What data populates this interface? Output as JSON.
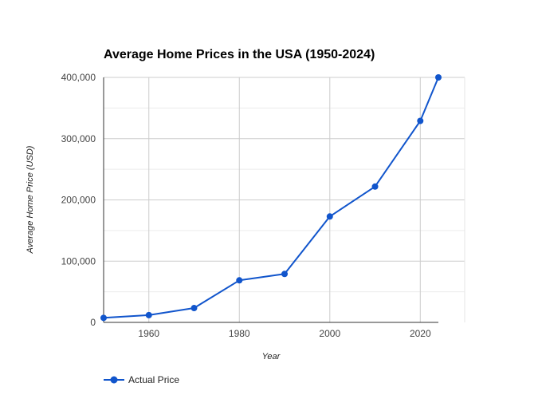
{
  "chart_data": {
    "type": "line",
    "title": "Average Home Prices in the USA (1950-2024)",
    "xlabel": "Year",
    "ylabel": "Average Home Price (USD)",
    "xlim": [
      1950,
      2024
    ],
    "ylim": [
      0,
      400000
    ],
    "x_ticks": [
      1960,
      1980,
      2000,
      2020
    ],
    "x_tick_labels": [
      "1960",
      "1980",
      "2000",
      "2020"
    ],
    "y_ticks": [
      0,
      100000,
      200000,
      300000,
      400000
    ],
    "y_tick_labels": [
      "0",
      "100,000",
      "200,000",
      "300,000",
      "400,000"
    ],
    "grid": true,
    "legend_position": "bottom",
    "series": [
      {
        "name": "Actual Price",
        "color": "#1155cc",
        "x": [
          1950,
          1960,
          1970,
          1980,
          1990,
          2000,
          2010,
          2020,
          2024
        ],
        "y": [
          7400,
          11900,
          23400,
          68700,
          79100,
          172900,
          221800,
          329000,
          400000
        ]
      }
    ]
  }
}
